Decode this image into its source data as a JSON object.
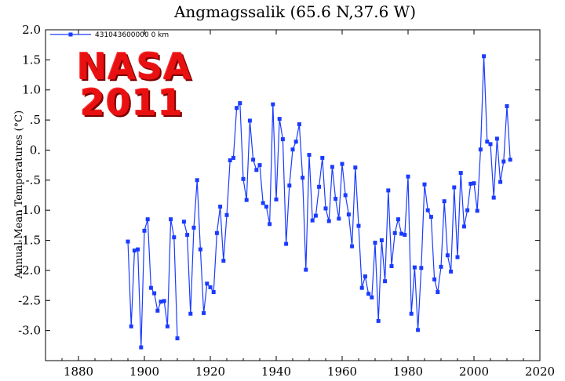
{
  "chart_data": {
    "type": "line",
    "title": "Angmagssalik (65.6 N,37.6 W)",
    "xlabel": "",
    "ylabel": "Annual Mean Temperatures (°C)",
    "xlim": [
      1870,
      2020
    ],
    "ylim": [
      -3.5,
      2.0
    ],
    "x_ticks": [
      1880,
      1900,
      1920,
      1940,
      1960,
      1980,
      2000,
      2020
    ],
    "y_ticks": [
      2.0,
      1.5,
      1.0,
      0.5,
      0.0,
      -0.5,
      -1.0,
      -1.5,
      -2.0,
      -2.5,
      -3.0
    ],
    "y_tick_labels": [
      "2.0",
      "1.5",
      "1.0",
      ".5",
      "0.",
      "-.5",
      "-1.0",
      "-1.5",
      "-2.0",
      "-2.5",
      "-3.0"
    ],
    "x_tick_labels": [
      "1880",
      "1900",
      "1920",
      "1940",
      "1960",
      "1980",
      "2000",
      "2020"
    ],
    "line_color": "#1a3bff",
    "legend": {
      "label": "431043600000  0 km",
      "position": "top-left"
    },
    "series": [
      {
        "name": "431043600000  0 km",
        "x": [
          1895,
          1896,
          1897,
          1898,
          1899,
          1900,
          1901,
          1902,
          1903,
          1904,
          1905,
          1906,
          1907,
          1908,
          1909,
          1910,
          1911,
          1912,
          1913,
          1914,
          1915,
          1916,
          1917,
          1918,
          1919,
          1920,
          1921,
          1922,
          1923,
          1924,
          1925,
          1926,
          1927,
          1928,
          1929,
          1930,
          1931,
          1932,
          1933,
          1934,
          1935,
          1936,
          1937,
          1938,
          1939,
          1940,
          1941,
          1942,
          1943,
          1944,
          1945,
          1946,
          1947,
          1948,
          1949,
          1950,
          1951,
          1952,
          1953,
          1954,
          1955,
          1956,
          1957,
          1958,
          1959,
          1960,
          1961,
          1962,
          1963,
          1964,
          1965,
          1966,
          1967,
          1968,
          1969,
          1970,
          1971,
          1972,
          1973,
          1974,
          1975,
          1976,
          1977,
          1978,
          1979,
          1980,
          1981,
          1982,
          1983,
          1984,
          1985,
          1986,
          1987,
          1988,
          1989,
          1990,
          1991,
          1992,
          1993,
          1994,
          1995,
          1996,
          1997,
          1998,
          1999,
          2000,
          2001,
          2002,
          2003,
          2004,
          2005,
          2006,
          2007,
          2008,
          2009,
          2010,
          2011
        ],
        "values": [
          -1.52,
          -2.93,
          -1.67,
          -1.65,
          -3.28,
          -1.34,
          -1.15,
          -2.29,
          -2.38,
          -2.67,
          -2.52,
          -2.51,
          -2.93,
          -1.15,
          -1.45,
          -3.13,
          null,
          -1.19,
          -1.41,
          -2.72,
          -1.29,
          -0.5,
          -1.65,
          -2.71,
          -2.22,
          -2.28,
          -2.36,
          -1.38,
          -0.94,
          -1.84,
          -1.08,
          -0.17,
          -0.13,
          0.7,
          0.78,
          -0.48,
          -0.83,
          0.49,
          -0.16,
          -0.33,
          -0.25,
          -0.88,
          -0.94,
          -1.23,
          0.76,
          -0.82,
          0.52,
          0.18,
          -1.56,
          -0.59,
          0.01,
          0.14,
          0.43,
          -0.46,
          -1.99,
          -0.08,
          -1.17,
          -1.09,
          -0.61,
          -0.13,
          -0.97,
          -1.18,
          -0.28,
          -0.81,
          -1.14,
          -0.23,
          -0.75,
          -1.07,
          -1.6,
          -0.29,
          -1.26,
          -2.29,
          -2.1,
          -2.39,
          -2.45,
          -1.54,
          -2.84,
          -1.5,
          -2.18,
          -0.67,
          -1.93,
          -1.38,
          -1.15,
          -1.39,
          -1.41,
          -0.44,
          -2.72,
          -1.95,
          -2.99,
          -1.96,
          -0.57,
          -1.0,
          -1.11,
          -2.15,
          -2.36,
          -1.94,
          -0.85,
          -1.75,
          -2.02,
          -0.62,
          -1.78,
          -0.38,
          -1.27,
          -1.0,
          -0.56,
          -0.55,
          -1.01,
          0.01,
          1.56,
          0.14,
          0.1,
          -0.79,
          0.19,
          -0.53,
          -0.19,
          0.73,
          -0.16
        ]
      }
    ]
  }
}
